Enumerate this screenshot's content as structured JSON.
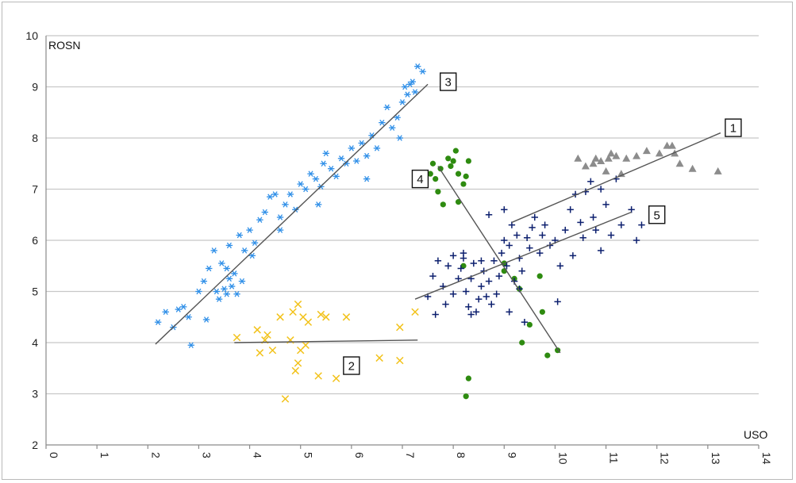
{
  "chart_data": {
    "type": "scatter",
    "title": "",
    "xlabel": "USO",
    "ylabel": "ROSN",
    "xlim": [
      0,
      14
    ],
    "ylim": [
      2,
      10
    ],
    "xticks": [
      "0",
      "1",
      "2",
      "3",
      "4",
      "5",
      "6",
      "7",
      "8",
      "9",
      "10",
      "11",
      "12",
      "13",
      "14"
    ],
    "yticks": [
      "2",
      "3",
      "4",
      "5",
      "6",
      "7",
      "8",
      "9",
      "10"
    ],
    "grid": "horizontal",
    "legend": "none",
    "series": [
      {
        "marker": "asterisk",
        "color": "#2f8fe8",
        "label": "3",
        "label_pos": [
          7.9,
          9.1
        ],
        "trend": [
          [
            2.15,
            3.97
          ],
          [
            7.5,
            9.05
          ]
        ],
        "points": [
          [
            2.2,
            4.4
          ],
          [
            2.35,
            4.6
          ],
          [
            2.5,
            4.3
          ],
          [
            2.6,
            4.65
          ],
          [
            2.7,
            4.7
          ],
          [
            2.8,
            4.5
          ],
          [
            2.85,
            3.95
          ],
          [
            3.0,
            5.0
          ],
          [
            3.1,
            5.2
          ],
          [
            3.2,
            5.45
          ],
          [
            3.15,
            4.45
          ],
          [
            3.3,
            5.8
          ],
          [
            3.35,
            5.0
          ],
          [
            3.4,
            4.85
          ],
          [
            3.45,
            5.55
          ],
          [
            3.5,
            5.05
          ],
          [
            3.55,
            4.95
          ],
          [
            3.6,
            5.25
          ],
          [
            3.65,
            5.1
          ],
          [
            3.7,
            5.35
          ],
          [
            3.75,
            4.95
          ],
          [
            3.6,
            5.9
          ],
          [
            3.8,
            6.1
          ],
          [
            3.9,
            5.8
          ],
          [
            4.0,
            6.2
          ],
          [
            4.1,
            5.95
          ],
          [
            4.2,
            6.4
          ],
          [
            4.3,
            6.55
          ],
          [
            4.4,
            6.85
          ],
          [
            4.5,
            6.9
          ],
          [
            4.6,
            6.45
          ],
          [
            4.7,
            6.7
          ],
          [
            4.8,
            6.9
          ],
          [
            4.9,
            6.6
          ],
          [
            5.0,
            7.1
          ],
          [
            5.1,
            7.0
          ],
          [
            5.2,
            7.3
          ],
          [
            5.3,
            7.2
          ],
          [
            5.4,
            7.05
          ],
          [
            5.5,
            7.7
          ],
          [
            5.6,
            7.4
          ],
          [
            5.7,
            7.25
          ],
          [
            5.8,
            7.6
          ],
          [
            5.9,
            7.5
          ],
          [
            6.0,
            7.8
          ],
          [
            6.1,
            7.55
          ],
          [
            6.2,
            7.9
          ],
          [
            6.3,
            7.65
          ],
          [
            6.4,
            8.05
          ],
          [
            6.5,
            7.8
          ],
          [
            6.6,
            8.3
          ],
          [
            6.7,
            8.6
          ],
          [
            6.8,
            8.2
          ],
          [
            6.9,
            8.4
          ],
          [
            7.0,
            8.7
          ],
          [
            7.05,
            9.0
          ],
          [
            7.1,
            8.85
          ],
          [
            7.15,
            9.05
          ],
          [
            7.2,
            9.1
          ],
          [
            7.3,
            9.4
          ],
          [
            7.25,
            8.9
          ],
          [
            7.4,
            9.3
          ],
          [
            6.95,
            8.0
          ],
          [
            5.35,
            6.7
          ],
          [
            6.3,
            7.2
          ],
          [
            4.05,
            5.7
          ],
          [
            3.85,
            5.2
          ],
          [
            3.55,
            5.45
          ],
          [
            4.6,
            6.2
          ],
          [
            5.45,
            7.5
          ]
        ]
      },
      {
        "marker": "x",
        "color": "#f2c21a",
        "label": "2",
        "label_pos": [
          6.0,
          3.55
        ],
        "trend": [
          [
            3.7,
            4.0
          ],
          [
            7.3,
            4.05
          ]
        ],
        "points": [
          [
            3.75,
            4.1
          ],
          [
            4.15,
            4.25
          ],
          [
            4.2,
            3.8
          ],
          [
            4.3,
            4.05
          ],
          [
            4.35,
            4.15
          ],
          [
            4.45,
            3.85
          ],
          [
            4.6,
            4.5
          ],
          [
            4.7,
            2.9
          ],
          [
            4.8,
            4.05
          ],
          [
            4.85,
            4.6
          ],
          [
            4.9,
            3.45
          ],
          [
            4.95,
            3.6
          ],
          [
            4.95,
            4.75
          ],
          [
            5.0,
            3.85
          ],
          [
            5.05,
            4.5
          ],
          [
            5.1,
            3.95
          ],
          [
            5.15,
            4.4
          ],
          [
            5.35,
            3.35
          ],
          [
            5.4,
            4.55
          ],
          [
            5.5,
            4.5
          ],
          [
            5.7,
            3.3
          ],
          [
            5.9,
            4.5
          ],
          [
            6.55,
            3.7
          ],
          [
            6.95,
            3.65
          ],
          [
            6.95,
            4.3
          ],
          [
            7.25,
            4.6
          ]
        ]
      },
      {
        "marker": "dot",
        "color": "#2e8b10",
        "label": "4",
        "label_pos": [
          7.35,
          7.2
        ],
        "trend": [
          [
            7.7,
            7.45
          ],
          [
            10.1,
            3.8
          ]
        ],
        "points": [
          [
            7.55,
            7.3
          ],
          [
            7.6,
            7.5
          ],
          [
            7.65,
            7.2
          ],
          [
            7.7,
            6.95
          ],
          [
            7.75,
            7.4
          ],
          [
            7.8,
            6.7
          ],
          [
            7.9,
            7.6
          ],
          [
            7.95,
            7.45
          ],
          [
            8.0,
            7.55
          ],
          [
            8.05,
            7.75
          ],
          [
            8.1,
            7.3
          ],
          [
            8.2,
            7.1
          ],
          [
            8.25,
            7.25
          ],
          [
            8.3,
            7.55
          ],
          [
            8.1,
            6.75
          ],
          [
            8.2,
            5.5
          ],
          [
            8.25,
            2.95
          ],
          [
            8.3,
            3.3
          ],
          [
            9.0,
            5.4
          ],
          [
            9.2,
            5.25
          ],
          [
            9.3,
            5.05
          ],
          [
            9.35,
            4.0
          ],
          [
            9.5,
            4.35
          ],
          [
            9.7,
            5.3
          ],
          [
            9.75,
            4.6
          ],
          [
            9.85,
            3.75
          ],
          [
            10.05,
            3.85
          ],
          [
            9.0,
            5.55
          ]
        ]
      },
      {
        "marker": "triangle",
        "color": "#8c8c8c",
        "label": "1",
        "label_pos": [
          13.5,
          8.2
        ],
        "trend": [
          [
            9.15,
            6.35
          ],
          [
            13.25,
            8.1
          ]
        ],
        "points": [
          [
            10.45,
            7.6
          ],
          [
            10.6,
            7.45
          ],
          [
            10.75,
            7.5
          ],
          [
            10.8,
            7.6
          ],
          [
            10.9,
            7.55
          ],
          [
            11.0,
            7.35
          ],
          [
            11.05,
            7.6
          ],
          [
            11.1,
            7.7
          ],
          [
            11.2,
            7.65
          ],
          [
            11.3,
            7.3
          ],
          [
            11.4,
            7.6
          ],
          [
            11.6,
            7.65
          ],
          [
            11.8,
            7.75
          ],
          [
            12.05,
            7.7
          ],
          [
            12.2,
            7.85
          ],
          [
            12.3,
            7.85
          ],
          [
            12.35,
            7.7
          ],
          [
            12.45,
            7.5
          ],
          [
            12.7,
            7.4
          ],
          [
            13.2,
            7.35
          ]
        ]
      },
      {
        "marker": "plus",
        "color": "#0c1f6e",
        "label": "5",
        "label_pos": [
          12.0,
          6.5
        ],
        "trend": [
          [
            7.25,
            4.85
          ],
          [
            11.5,
            6.55
          ]
        ],
        "points": [
          [
            7.5,
            4.9
          ],
          [
            7.6,
            5.3
          ],
          [
            7.7,
            5.6
          ],
          [
            7.8,
            5.1
          ],
          [
            7.85,
            4.75
          ],
          [
            7.9,
            5.5
          ],
          [
            8.0,
            5.7
          ],
          [
            8.0,
            4.95
          ],
          [
            8.1,
            5.25
          ],
          [
            8.15,
            5.45
          ],
          [
            8.2,
            5.65
          ],
          [
            8.25,
            5.0
          ],
          [
            8.3,
            4.7
          ],
          [
            8.35,
            5.25
          ],
          [
            8.4,
            5.55
          ],
          [
            8.45,
            4.6
          ],
          [
            8.5,
            4.85
          ],
          [
            8.55,
            5.1
          ],
          [
            8.6,
            5.4
          ],
          [
            8.65,
            4.9
          ],
          [
            8.7,
            5.2
          ],
          [
            8.75,
            4.75
          ],
          [
            8.8,
            5.6
          ],
          [
            8.85,
            4.95
          ],
          [
            8.9,
            5.3
          ],
          [
            8.95,
            5.75
          ],
          [
            9.0,
            6.0
          ],
          [
            9.05,
            5.5
          ],
          [
            9.1,
            5.9
          ],
          [
            9.15,
            6.3
          ],
          [
            9.2,
            5.2
          ],
          [
            9.25,
            6.1
          ],
          [
            9.3,
            5.65
          ],
          [
            9.35,
            5.4
          ],
          [
            9.4,
            4.4
          ],
          [
            9.5,
            5.85
          ],
          [
            9.55,
            6.25
          ],
          [
            9.6,
            6.45
          ],
          [
            9.7,
            5.75
          ],
          [
            9.75,
            6.1
          ],
          [
            9.8,
            6.3
          ],
          [
            9.9,
            5.9
          ],
          [
            10.0,
            6.0
          ],
          [
            10.05,
            4.8
          ],
          [
            10.1,
            5.5
          ],
          [
            10.2,
            6.2
          ],
          [
            10.3,
            6.6
          ],
          [
            10.4,
            6.9
          ],
          [
            10.5,
            6.35
          ],
          [
            10.6,
            6.95
          ],
          [
            10.7,
            7.15
          ],
          [
            10.75,
            6.45
          ],
          [
            10.8,
            6.2
          ],
          [
            10.9,
            7.0
          ],
          [
            11.0,
            6.7
          ],
          [
            11.1,
            6.1
          ],
          [
            11.2,
            7.2
          ],
          [
            11.3,
            6.3
          ],
          [
            11.5,
            6.6
          ],
          [
            11.6,
            6.0
          ],
          [
            11.7,
            6.3
          ],
          [
            8.2,
            5.75
          ],
          [
            8.7,
            6.5
          ],
          [
            9.0,
            6.6
          ],
          [
            9.45,
            6.05
          ],
          [
            8.35,
            4.55
          ],
          [
            7.65,
            4.55
          ],
          [
            10.35,
            5.7
          ],
          [
            10.55,
            6.05
          ],
          [
            10.9,
            5.8
          ],
          [
            8.55,
            5.6
          ],
          [
            9.1,
            4.6
          ],
          [
            9.3,
            5.05
          ]
        ]
      }
    ]
  }
}
